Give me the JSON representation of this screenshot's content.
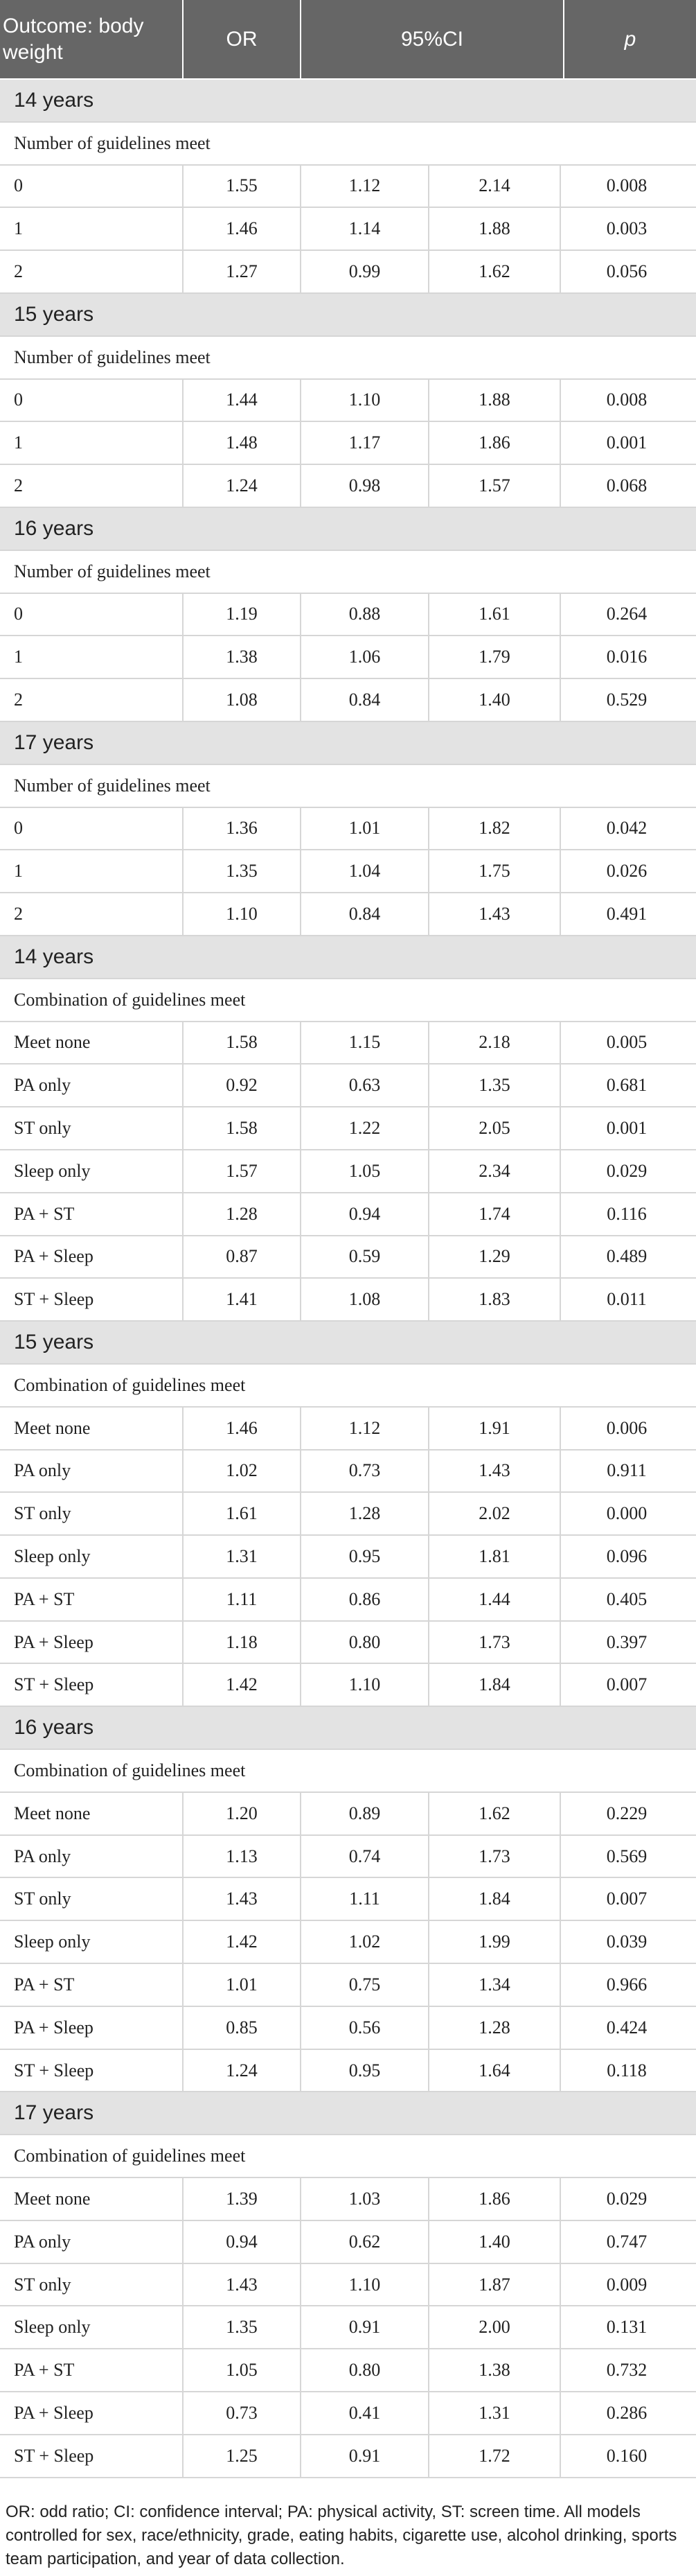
{
  "header": {
    "outcome": "Outcome: body weight",
    "or": "OR",
    "ci": "95%CI",
    "p": "p"
  },
  "sections": [
    {
      "title": "14 years",
      "subtitle": "Number of guidelines meet",
      "rows": [
        {
          "label": "0",
          "or": "1.55",
          "lo": "1.12",
          "hi": "2.14",
          "p": "0.008"
        },
        {
          "label": "1",
          "or": "1.46",
          "lo": "1.14",
          "hi": "1.88",
          "p": "0.003"
        },
        {
          "label": "2",
          "or": "1.27",
          "lo": "0.99",
          "hi": "1.62",
          "p": "0.056"
        }
      ]
    },
    {
      "title": "15 years",
      "subtitle": "Number of guidelines meet",
      "rows": [
        {
          "label": "0",
          "or": "1.44",
          "lo": "1.10",
          "hi": "1.88",
          "p": "0.008"
        },
        {
          "label": "1",
          "or": "1.48",
          "lo": "1.17",
          "hi": "1.86",
          "p": "0.001"
        },
        {
          "label": "2",
          "or": "1.24",
          "lo": "0.98",
          "hi": "1.57",
          "p": "0.068"
        }
      ]
    },
    {
      "title": "16 years",
      "subtitle": "Number of guidelines meet",
      "rows": [
        {
          "label": "0",
          "or": "1.19",
          "lo": "0.88",
          "hi": "1.61",
          "p": "0.264"
        },
        {
          "label": "1",
          "or": "1.38",
          "lo": "1.06",
          "hi": "1.79",
          "p": "0.016"
        },
        {
          "label": "2",
          "or": "1.08",
          "lo": "0.84",
          "hi": "1.40",
          "p": "0.529"
        }
      ]
    },
    {
      "title": "17 years",
      "subtitle": "Number of guidelines meet",
      "rows": [
        {
          "label": "0",
          "or": "1.36",
          "lo": "1.01",
          "hi": "1.82",
          "p": "0.042"
        },
        {
          "label": "1",
          "or": "1.35",
          "lo": "1.04",
          "hi": "1.75",
          "p": "0.026"
        },
        {
          "label": "2",
          "or": "1.10",
          "lo": "0.84",
          "hi": "1.43",
          "p": "0.491"
        }
      ]
    },
    {
      "title": "14 years",
      "subtitle": "Combination of guidelines meet",
      "rows": [
        {
          "label": "Meet none",
          "or": "1.58",
          "lo": "1.15",
          "hi": "2.18",
          "p": "0.005"
        },
        {
          "label": "PA only",
          "or": "0.92",
          "lo": "0.63",
          "hi": "1.35",
          "p": "0.681"
        },
        {
          "label": "ST only",
          "or": "1.58",
          "lo": "1.22",
          "hi": "2.05",
          "p": "0.001"
        },
        {
          "label": "Sleep only",
          "or": "1.57",
          "lo": "1.05",
          "hi": "2.34",
          "p": "0.029"
        },
        {
          "label": "PA + ST",
          "or": "1.28",
          "lo": "0.94",
          "hi": "1.74",
          "p": "0.116"
        },
        {
          "label": "PA + Sleep",
          "or": "0.87",
          "lo": "0.59",
          "hi": "1.29",
          "p": "0.489"
        },
        {
          "label": "ST + Sleep",
          "or": "1.41",
          "lo": "1.08",
          "hi": "1.83",
          "p": "0.011"
        }
      ]
    },
    {
      "title": "15 years",
      "subtitle": "Combination of guidelines meet",
      "rows": [
        {
          "label": "Meet none",
          "or": "1.46",
          "lo": "1.12",
          "hi": "1.91",
          "p": "0.006"
        },
        {
          "label": "PA only",
          "or": "1.02",
          "lo": "0.73",
          "hi": "1.43",
          "p": "0.911"
        },
        {
          "label": "ST only",
          "or": "1.61",
          "lo": "1.28",
          "hi": "2.02",
          "p": "0.000"
        },
        {
          "label": "Sleep only",
          "or": "1.31",
          "lo": "0.95",
          "hi": "1.81",
          "p": "0.096"
        },
        {
          "label": "PA + ST",
          "or": "1.11",
          "lo": "0.86",
          "hi": "1.44",
          "p": "0.405"
        },
        {
          "label": "PA + Sleep",
          "or": "1.18",
          "lo": "0.80",
          "hi": "1.73",
          "p": "0.397"
        },
        {
          "label": "ST + Sleep",
          "or": "1.42",
          "lo": "1.10",
          "hi": "1.84",
          "p": "0.007"
        }
      ]
    },
    {
      "title": "16 years",
      "subtitle": "Combination of guidelines meet",
      "rows": [
        {
          "label": "Meet none",
          "or": "1.20",
          "lo": "0.89",
          "hi": "1.62",
          "p": "0.229"
        },
        {
          "label": "PA only",
          "or": "1.13",
          "lo": "0.74",
          "hi": "1.73",
          "p": "0.569"
        },
        {
          "label": "ST only",
          "or": "1.43",
          "lo": "1.11",
          "hi": "1.84",
          "p": "0.007"
        },
        {
          "label": "Sleep only",
          "or": "1.42",
          "lo": "1.02",
          "hi": "1.99",
          "p": "0.039"
        },
        {
          "label": "PA + ST",
          "or": "1.01",
          "lo": "0.75",
          "hi": "1.34",
          "p": "0.966"
        },
        {
          "label": "PA + Sleep",
          "or": "0.85",
          "lo": "0.56",
          "hi": "1.28",
          "p": "0.424"
        },
        {
          "label": "ST + Sleep",
          "or": "1.24",
          "lo": "0.95",
          "hi": "1.64",
          "p": "0.118"
        }
      ]
    },
    {
      "title": "17 years",
      "subtitle": "Combination of guidelines meet",
      "rows": [
        {
          "label": "Meet none",
          "or": "1.39",
          "lo": "1.03",
          "hi": "1.86",
          "p": "0.029"
        },
        {
          "label": "PA only",
          "or": "0.94",
          "lo": "0.62",
          "hi": "1.40",
          "p": "0.747"
        },
        {
          "label": "ST only",
          "or": "1.43",
          "lo": "1.10",
          "hi": "1.87",
          "p": "0.009"
        },
        {
          "label": "Sleep only",
          "or": "1.35",
          "lo": "0.91",
          "hi": "2.00",
          "p": "0.131"
        },
        {
          "label": "PA + ST",
          "or": "1.05",
          "lo": "0.80",
          "hi": "1.38",
          "p": "0.732"
        },
        {
          "label": "PA + Sleep",
          "or": "0.73",
          "lo": "0.41",
          "hi": "1.31",
          "p": "0.286"
        },
        {
          "label": "ST + Sleep",
          "or": "1.25",
          "lo": "0.91",
          "hi": "1.72",
          "p": "0.160"
        }
      ]
    }
  ],
  "footnote": "OR: odd ratio; CI: confidence interval; PA: physical activity, ST: screen time. All models controlled for sex, race/ethnicity, grade, eating habits, cigarette use, alcohol drinking, sports team participation, and year of data collection."
}
